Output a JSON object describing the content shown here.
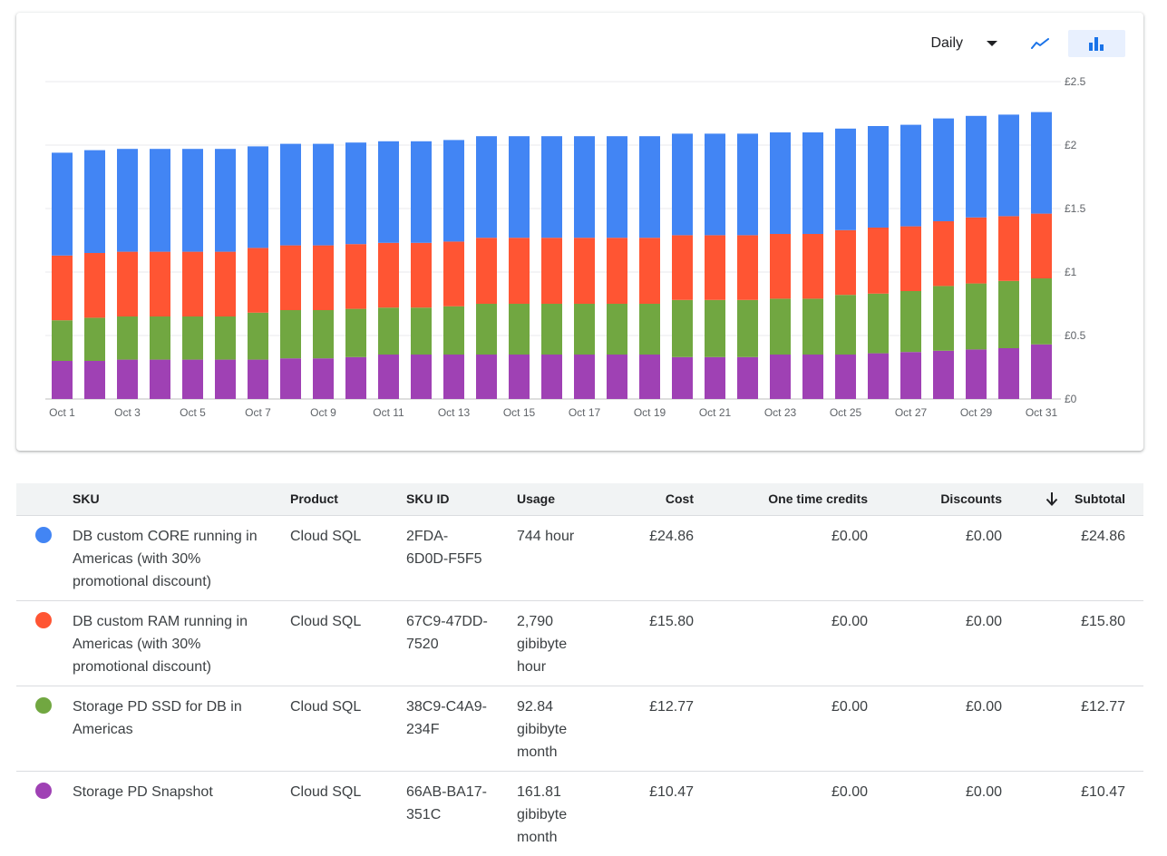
{
  "toolbar": {
    "period": "Daily",
    "chart_type_icons": [
      "line-chart-icon",
      "bar-chart-icon"
    ],
    "active_chart_type": "bar"
  },
  "colors": {
    "core": "#4285f4",
    "ram": "#ff5533",
    "ssd": "#71a741",
    "snapshot": "#9f41b4"
  },
  "chart_data": {
    "type": "bar",
    "stacked": true,
    "categories": [
      "Oct 1",
      "Oct 2",
      "Oct 3",
      "Oct 4",
      "Oct 5",
      "Oct 6",
      "Oct 7",
      "Oct 8",
      "Oct 9",
      "Oct 10",
      "Oct 11",
      "Oct 12",
      "Oct 13",
      "Oct 14",
      "Oct 15",
      "Oct 16",
      "Oct 17",
      "Oct 18",
      "Oct 19",
      "Oct 20",
      "Oct 21",
      "Oct 22",
      "Oct 23",
      "Oct 24",
      "Oct 25",
      "Oct 26",
      "Oct 27",
      "Oct 28",
      "Oct 29",
      "Oct 30",
      "Oct 31"
    ],
    "x_tick_labels": [
      "Oct 1",
      "Oct 3",
      "Oct 5",
      "Oct 7",
      "Oct 9",
      "Oct 11",
      "Oct 13",
      "Oct 15",
      "Oct 17",
      "Oct 19",
      "Oct 21",
      "Oct 23",
      "Oct 25",
      "Oct 27",
      "Oct 29",
      "Oct 31"
    ],
    "y_tick_labels": [
      "£0",
      "£0.5",
      "£1",
      "£1.5",
      "£2",
      "£2.5"
    ],
    "y_ticks": [
      0,
      0.5,
      1,
      1.5,
      2,
      2.5
    ],
    "ylim": [
      0,
      2.5
    ],
    "y_axis_position": "right",
    "grid": true,
    "series": [
      {
        "key": "snapshot",
        "values": [
          0.3,
          0.3,
          0.31,
          0.31,
          0.31,
          0.31,
          0.31,
          0.32,
          0.32,
          0.33,
          0.35,
          0.35,
          0.35,
          0.35,
          0.35,
          0.35,
          0.35,
          0.35,
          0.35,
          0.33,
          0.33,
          0.33,
          0.35,
          0.35,
          0.35,
          0.36,
          0.37,
          0.38,
          0.39,
          0.4,
          0.43
        ]
      },
      {
        "key": "ssd",
        "values": [
          0.32,
          0.34,
          0.34,
          0.34,
          0.34,
          0.34,
          0.37,
          0.38,
          0.38,
          0.38,
          0.37,
          0.37,
          0.38,
          0.4,
          0.4,
          0.4,
          0.4,
          0.4,
          0.4,
          0.45,
          0.45,
          0.45,
          0.44,
          0.44,
          0.47,
          0.47,
          0.48,
          0.51,
          0.52,
          0.53,
          0.52
        ]
      },
      {
        "key": "ram",
        "values": [
          0.51,
          0.51,
          0.51,
          0.51,
          0.51,
          0.51,
          0.51,
          0.51,
          0.51,
          0.51,
          0.51,
          0.51,
          0.51,
          0.52,
          0.52,
          0.52,
          0.52,
          0.52,
          0.52,
          0.51,
          0.51,
          0.51,
          0.51,
          0.51,
          0.51,
          0.52,
          0.51,
          0.51,
          0.52,
          0.51,
          0.51
        ]
      },
      {
        "key": "core",
        "values": [
          0.81,
          0.81,
          0.81,
          0.81,
          0.81,
          0.81,
          0.8,
          0.8,
          0.8,
          0.8,
          0.8,
          0.8,
          0.8,
          0.8,
          0.8,
          0.8,
          0.8,
          0.8,
          0.8,
          0.8,
          0.8,
          0.8,
          0.8,
          0.8,
          0.8,
          0.8,
          0.8,
          0.81,
          0.8,
          0.8,
          0.8
        ]
      }
    ]
  },
  "table": {
    "headers": {
      "sku": "SKU",
      "product": "Product",
      "sku_id": "SKU ID",
      "usage": "Usage",
      "cost": "Cost",
      "credits": "One time credits",
      "discounts": "Discounts",
      "subtotal": "Subtotal"
    },
    "sort_icon": "arrow-down-icon",
    "rows": [
      {
        "color": "#4285f4",
        "sku": "DB custom CORE running in Americas (with 30% promotional discount)",
        "product": "Cloud SQL",
        "sku_id": "2FDA-6D0D-F5F5",
        "usage": "744 hour",
        "cost": "£24.86",
        "credits": "£0.00",
        "discounts": "£0.00",
        "subtotal": "£24.86"
      },
      {
        "color": "#ff5533",
        "sku": "DB custom RAM running in Americas (with 30% promotional discount)",
        "product": "Cloud SQL",
        "sku_id": "67C9-47DD-7520",
        "usage": "2,790 gibibyte hour",
        "cost": "£15.80",
        "credits": "£0.00",
        "discounts": "£0.00",
        "subtotal": "£15.80"
      },
      {
        "color": "#71a741",
        "sku": "Storage PD SSD for DB in Americas",
        "product": "Cloud SQL",
        "sku_id": "38C9-C4A9-234F",
        "usage": "92.84 gibibyte month",
        "cost": "£12.77",
        "credits": "£0.00",
        "discounts": "£0.00",
        "subtotal": "£12.77"
      },
      {
        "color": "#9f41b4",
        "sku": "Storage PD Snapshot",
        "product": "Cloud SQL",
        "sku_id": "66AB-BA17-351C",
        "usage": "161.81 gibibyte month",
        "cost": "£10.47",
        "credits": "£0.00",
        "discounts": "£0.00",
        "subtotal": "£10.47"
      }
    ]
  }
}
